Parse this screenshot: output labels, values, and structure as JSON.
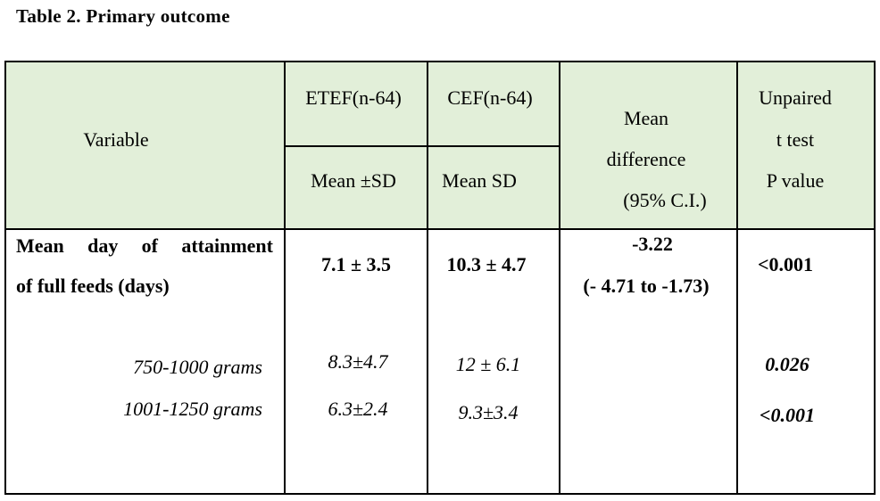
{
  "title": "Table 2. Primary outcome",
  "header": {
    "variable": "Variable",
    "etef": "ETEF(n-64)",
    "cef": "CEF(n-64)",
    "etef_sub": "Mean ±SD",
    "cef_sub": "Mean SD",
    "mean_diff_1": "Mean",
    "mean_diff_2": "difference",
    "mean_diff_3": "(95% C.I.)",
    "ttest_1": "Unpaired",
    "ttest_2": "t test",
    "ttest_3": "P value"
  },
  "main_row": {
    "label_words": [
      "Mean",
      "day",
      "of",
      "attainment"
    ],
    "label_2": "of full feeds (days)",
    "etef": "7.1 ± 3.5",
    "cef": "10.3 ± 4.7",
    "diff": "-3.22",
    "ci": "(- 4.71 to -1.73)",
    "p": "<0.001"
  },
  "sub_rows": [
    {
      "label": "750-1000 grams",
      "etef": "8.3±4.7",
      "cef": "12 ± 6.1",
      "p": "0.026"
    },
    {
      "label": "1001-1250 grams",
      "etef": "6.3±2.4",
      "cef": "9.3±3.4",
      "p": "<0.001"
    }
  ]
}
